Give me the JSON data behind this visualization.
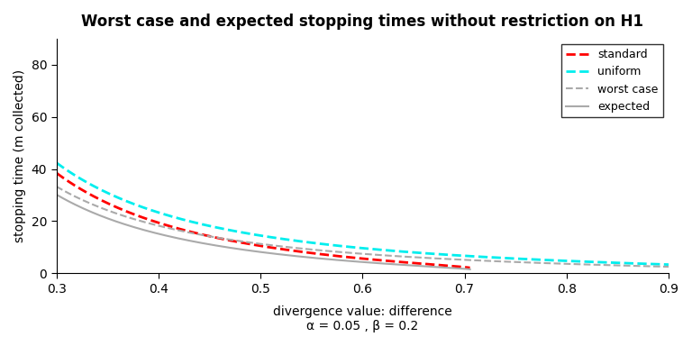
{
  "title": "Worst case and expected stopping times without restriction on H1",
  "xlabel_line1": "divergence value: difference",
  "xlabel_line2": "α = 0.05 , β = 0.2",
  "ylabel": "stopping time (m collected)",
  "xlim": [
    0.3,
    0.9
  ],
  "ylim": [
    0,
    90
  ],
  "x_ticks": [
    0.3,
    0.4,
    0.5,
    0.6,
    0.7,
    0.8,
    0.9
  ],
  "y_ticks": [
    0,
    20,
    40,
    60,
    80
  ],
  "alpha": 0.05,
  "beta": 0.2,
  "colors": {
    "standard": "#FF0000",
    "uniform": "#00EEEE",
    "worst_case": "#AAAAAA",
    "expected": "#AAAAAA"
  },
  "legend_labels": [
    "standard",
    "uniform",
    "worst case",
    "expected"
  ],
  "background_color": "#FFFFFF"
}
